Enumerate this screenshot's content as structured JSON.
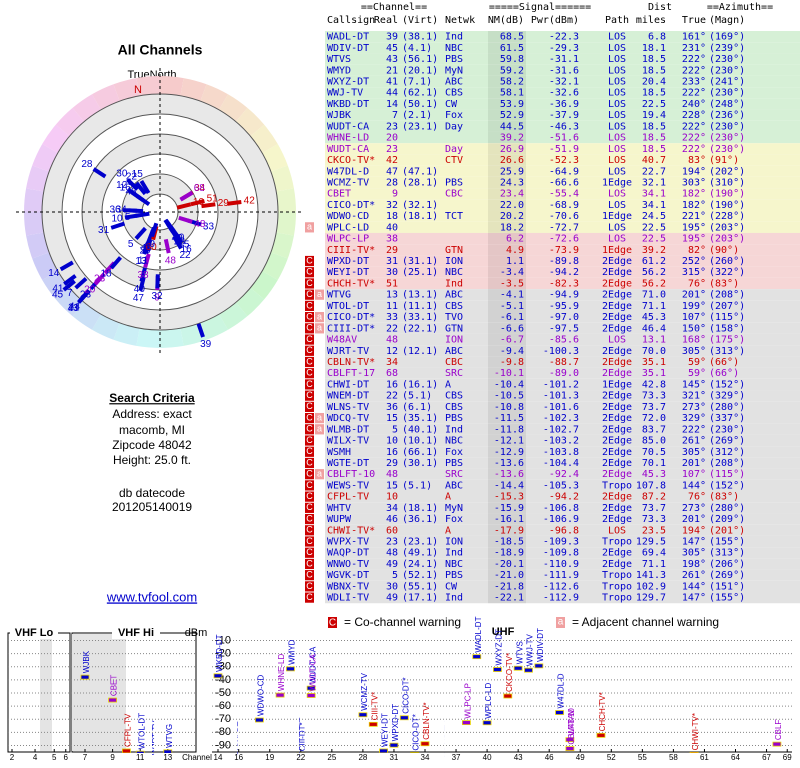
{
  "header": {
    "title": "All Channels",
    "true_north": "TrueNorth",
    "north": "N"
  },
  "criteria": {
    "title": "Search Criteria",
    "lines": [
      "Address: exact",
      "macomb, MI",
      "Zipcode 48042",
      "Height: 25.0 ft."
    ],
    "db_title": "db datecode",
    "db": "201205140019",
    "link": "www.tvfool.com"
  },
  "table": {
    "group_headers": [
      "==Channel==",
      "=====Signal======",
      "Dist",
      "==Azimuth=="
    ],
    "columns": [
      "Callsign",
      "Real",
      "(Virt)",
      "Netwk",
      "NM(dB)",
      "Pwr(dBm)",
      "Path",
      "miles",
      "True",
      "(Magn)"
    ],
    "rows": [
      {
        "cells": [
          "WADL-DT",
          "39",
          "(38.1)",
          "Ind",
          "68.5",
          "-22.3",
          "LOS",
          "6.8",
          "161°",
          "(169°)"
        ],
        "color": "#0000cc",
        "bg": "#d6f0d6"
      },
      {
        "cells": [
          "WDIV-DT",
          "45",
          "(4.1)",
          "NBC",
          "61.5",
          "-29.3",
          "LOS",
          "18.1",
          "231°",
          "(239°)"
        ],
        "color": "#0000cc",
        "bg": "#d6f0d6"
      },
      {
        "cells": [
          "WTVS",
          "43",
          "(56.1)",
          "PBS",
          "59.8",
          "-31.1",
          "LOS",
          "18.5",
          "222°",
          "(230°)"
        ],
        "color": "#0000cc",
        "bg": "#d6f0d6"
      },
      {
        "cells": [
          "WMYD",
          "21",
          "(20.1)",
          "MyN",
          "59.2",
          "-31.6",
          "LOS",
          "18.5",
          "222°",
          "(230°)"
        ],
        "color": "#0000cc",
        "bg": "#d6f0d6"
      },
      {
        "cells": [
          "WXYZ-DT",
          "41",
          "(7.1)",
          "ABC",
          "58.2",
          "-32.1",
          "LOS",
          "20.4",
          "233°",
          "(241°)"
        ],
        "color": "#0000cc",
        "bg": "#d6f0d6"
      },
      {
        "cells": [
          "WWJ-TV",
          "44",
          "(62.1)",
          "CBS",
          "58.1",
          "-32.6",
          "LOS",
          "18.5",
          "222°",
          "(230°)"
        ],
        "color": "#0000cc",
        "bg": "#d6f0d6"
      },
      {
        "cells": [
          "WKBD-DT",
          "14",
          "(50.1)",
          "CW",
          "53.9",
          "-36.9",
          "LOS",
          "22.5",
          "240°",
          "(248°)"
        ],
        "color": "#0000cc",
        "bg": "#d6f0d6"
      },
      {
        "cells": [
          "WJBK",
          "7",
          "(2.1)",
          "Fox",
          "52.9",
          "-37.9",
          "LOS",
          "19.4",
          "228°",
          "(236°)"
        ],
        "color": "#0000cc",
        "bg": "#d6f0d6"
      },
      {
        "cells": [
          "WUDT-CA",
          "23",
          "(23.1)",
          "Day",
          "44.5",
          "-46.3",
          "LOS",
          "18.5",
          "222°",
          "(230°)"
        ],
        "color": "#0000cc",
        "bg": "#d6f0d6"
      },
      {
        "cells": [
          "WHNE-LD",
          "20",
          null,
          null,
          "39.2",
          "-51.6",
          "LOS",
          "18.5",
          "222°",
          "(230°)"
        ],
        "color": "#9900cc",
        "bg": "#d6f0d6"
      },
      {
        "cells": [
          "WUDT-CA",
          "23",
          null,
          "Day",
          "26.9",
          "-51.9",
          "LOS",
          "18.5",
          "222°",
          "(230°)"
        ],
        "color": "#9900cc",
        "bg": "#f6f6cc"
      },
      {
        "cells": [
          "CKCO-TV*",
          "42",
          null,
          "CTV",
          "26.6",
          "-52.3",
          "LOS",
          "40.7",
          "83°",
          "(91°)"
        ],
        "color": "#cc0000",
        "bg": "#f6f6cc"
      },
      {
        "cells": [
          "W47DL-D",
          "47",
          "(47.1)",
          null,
          "25.9",
          "-64.9",
          "LOS",
          "22.7",
          "194°",
          "(202°)"
        ],
        "color": "#0000cc",
        "bg": "#f6f6cc"
      },
      {
        "cells": [
          "WCMZ-TV",
          "28",
          "(28.1)",
          "PBS",
          "24.3",
          "-66.6",
          "1Edge",
          "32.1",
          "303°",
          "(310°)"
        ],
        "color": "#0000cc",
        "bg": "#f6f6cc"
      },
      {
        "cells": [
          "CBET",
          "9",
          null,
          "CBC",
          "23.4",
          "-55.4",
          "LOS",
          "34.1",
          "182°",
          "(190°)"
        ],
        "color": "#9900cc",
        "bg": "#f6f6cc"
      },
      {
        "cells": [
          "CICO-DT*",
          "32",
          "(32.1)",
          null,
          "22.0",
          "-68.9",
          "LOS",
          "34.1",
          "182°",
          "(190°)"
        ],
        "color": "#0000cc",
        "bg": "#f6f6cc"
      },
      {
        "cells": [
          "WDWO-CD",
          "18",
          "(18.1)",
          "TCT",
          "20.2",
          "-70.6",
          "1Edge",
          "24.5",
          "221°",
          "(228°)"
        ],
        "color": "#0000cc",
        "bg": "#f6f6cc"
      },
      {
        "cells": [
          "WPLC-LD",
          "40",
          null,
          null,
          "18.2",
          "-72.7",
          "LOS",
          "22.5",
          "195°",
          "(203°)"
        ],
        "color": "#0000cc",
        "bg": "#f6f6cc",
        "warnings": [
          "a"
        ]
      },
      {
        "cells": [
          "WLPC-LP",
          "38",
          null,
          null,
          "6.2",
          "-72.6",
          "LOS",
          "22.5",
          "195°",
          "(203°)"
        ],
        "color": "#9900cc",
        "bg": "#f6d6d6"
      },
      {
        "cells": [
          "CIII-TV*",
          "29",
          null,
          "GTN",
          "4.9",
          "-73.9",
          "1Edge",
          "39.2",
          "82°",
          "(90°)"
        ],
        "color": "#cc0000",
        "bg": "#f6d6d6"
      },
      {
        "cells": [
          "WPXD-DT",
          "31",
          "(31.1)",
          "ION",
          "1.1",
          "-89.8",
          "2Edge",
          "61.2",
          "252°",
          "(260°)"
        ],
        "color": "#0000cc",
        "bg": "#f6d6d6",
        "warnings": [
          "C"
        ]
      },
      {
        "cells": [
          "WEYI-DT",
          "30",
          "(25.1)",
          "NBC",
          "-3.4",
          "-94.2",
          "2Edge",
          "56.2",
          "315°",
          "(322°)"
        ],
        "color": "#0000cc",
        "bg": "#f6d6d6",
        "warnings": [
          "C"
        ]
      },
      {
        "cells": [
          "CHCH-TV*",
          "51",
          null,
          "Ind",
          "-3.5",
          "-82.3",
          "2Edge",
          "56.2",
          "76°",
          "(83°)"
        ],
        "color": "#cc0000",
        "bg": "#f6d6d6",
        "warnings": [
          "C"
        ]
      },
      {
        "cells": [
          "WTVG",
          "13",
          "(13.1)",
          "ABC",
          "-4.1",
          "-94.9",
          "2Edge",
          "71.0",
          "201°",
          "(208°)"
        ],
        "color": "#0000cc",
        "bg": "#e2e2e2",
        "warnings": [
          "C",
          "a"
        ]
      },
      {
        "cells": [
          "WTOL-DT",
          "11",
          "(11.1)",
          "CBS",
          "-5.1",
          "-95.9",
          "2Edge",
          "71.1",
          "199°",
          "(207°)"
        ],
        "color": "#0000cc",
        "bg": "#e2e2e2",
        "warnings": [
          "C"
        ]
      },
      {
        "cells": [
          "CICO-DT*",
          "33",
          "(33.1)",
          "TVO",
          "-6.1",
          "-97.0",
          "2Edge",
          "45.3",
          "107°",
          "(115°)"
        ],
        "color": "#0000cc",
        "bg": "#e2e2e2",
        "warnings": [
          "C",
          "a"
        ]
      },
      {
        "cells": [
          "CIII-DT*",
          "22",
          "(22.1)",
          "GTN",
          "-6.6",
          "-97.5",
          "2Edge",
          "46.4",
          "150°",
          "(158°)"
        ],
        "color": "#0000cc",
        "bg": "#e2e2e2",
        "warnings": [
          "C",
          "a"
        ]
      },
      {
        "cells": [
          "W48AV",
          "48",
          null,
          "ION",
          "-6.7",
          "-85.6",
          "LOS",
          "13.1",
          "168°",
          "(175°)"
        ],
        "color": "#9900cc",
        "bg": "#e2e2e2",
        "warnings": [
          "C"
        ]
      },
      {
        "cells": [
          "WJRT-TV",
          "12",
          "(12.1)",
          "ABC",
          "-9.4",
          "-100.3",
          "2Edge",
          "70.0",
          "305°",
          "(313°)"
        ],
        "color": "#0000cc",
        "bg": "#e2e2e2",
        "warnings": [
          "C"
        ]
      },
      {
        "cells": [
          "CBLN-TV*",
          "34",
          null,
          "CBC",
          "-9.8",
          "-88.7",
          "2Edge",
          "35.1",
          "59°",
          "(66°)"
        ],
        "color": "#cc0000",
        "bg": "#e2e2e2",
        "warnings": [
          "C"
        ]
      },
      {
        "cells": [
          "CBLFT-17",
          "68",
          null,
          "SRC",
          "-10.1",
          "-89.0",
          "2Edge",
          "35.1",
          "59°",
          "(66°)"
        ],
        "color": "#9900cc",
        "bg": "#e2e2e2",
        "warnings": [
          "C"
        ]
      },
      {
        "cells": [
          "CHWI-DT",
          "16",
          "(16.1)",
          "A",
          "-10.4",
          "-101.2",
          "1Edge",
          "42.8",
          "145°",
          "(152°)"
        ],
        "color": "#0000cc",
        "bg": "#e2e2e2",
        "warnings": [
          "C"
        ]
      },
      {
        "cells": [
          "WNEM-DT",
          "22",
          "(5.1)",
          "CBS",
          "-10.5",
          "-101.3",
          "2Edge",
          "73.3",
          "321°",
          "(329°)"
        ],
        "color": "#0000cc",
        "bg": "#e2e2e2",
        "warnings": [
          "C"
        ]
      },
      {
        "cells": [
          "WLNS-TV",
          "36",
          "(6.1)",
          "CBS",
          "-10.8",
          "-101.6",
          "2Edge",
          "73.7",
          "273°",
          "(280°)"
        ],
        "color": "#0000cc",
        "bg": "#e2e2e2",
        "warnings": [
          "C"
        ]
      },
      {
        "cells": [
          "WDCQ-TV",
          "15",
          "(35.1)",
          "PBS",
          "-11.5",
          "-102.3",
          "2Edge",
          "72.0",
          "329°",
          "(337°)"
        ],
        "color": "#0000cc",
        "bg": "#e2e2e2",
        "warnings": [
          "C",
          "a"
        ]
      },
      {
        "cells": [
          "WLMB-DT",
          "5",
          "(40.1)",
          "Ind",
          "-11.8",
          "-102.7",
          "2Edge",
          "83.7",
          "222°",
          "(230°)"
        ],
        "color": "#0000cc",
        "bg": "#e2e2e2",
        "warnings": [
          "C",
          "a"
        ]
      },
      {
        "cells": [
          "WILX-TV",
          "10",
          "(10.1)",
          "NBC",
          "-12.1",
          "-103.2",
          "2Edge",
          "85.0",
          "261°",
          "(269°)"
        ],
        "color": "#0000cc",
        "bg": "#e2e2e2",
        "warnings": [
          "C"
        ]
      },
      {
        "cells": [
          "WSMH",
          "16",
          "(66.1)",
          "Fox",
          "-12.9",
          "-103.8",
          "2Edge",
          "70.5",
          "305°",
          "(312°)"
        ],
        "color": "#0000cc",
        "bg": "#e2e2e2",
        "warnings": [
          "C"
        ]
      },
      {
        "cells": [
          "WGTE-DT",
          "29",
          "(30.1)",
          "PBS",
          "-13.6",
          "-104.4",
          "2Edge",
          "70.1",
          "201°",
          "(208°)"
        ],
        "color": "#0000cc",
        "bg": "#e2e2e2",
        "warnings": [
          "C"
        ]
      },
      {
        "cells": [
          "CBLFT-10",
          "48",
          null,
          "SRC",
          "-13.6",
          "-92.4",
          "2Edge",
          "45.3",
          "107°",
          "(115°)"
        ],
        "color": "#9900cc",
        "bg": "#e2e2e2",
        "warnings": [
          "C",
          "a"
        ]
      },
      {
        "cells": [
          "WEWS-TV",
          "15",
          "(5.1)",
          "ABC",
          "-14.4",
          "-105.3",
          "Tropo",
          "107.8",
          "144°",
          "(152°)"
        ],
        "color": "#0000cc",
        "bg": "#e2e2e2",
        "warnings": [
          "C"
        ]
      },
      {
        "cells": [
          "CFPL-TV",
          "10",
          null,
          "A",
          "-15.3",
          "-94.2",
          "2Edge",
          "87.2",
          "76°",
          "(83°)"
        ],
        "color": "#cc0000",
        "bg": "#e2e2e2",
        "warnings": [
          "C"
        ]
      },
      {
        "cells": [
          "WHTV",
          "34",
          "(18.1)",
          "MyN",
          "-15.9",
          "-106.8",
          "2Edge",
          "73.7",
          "273°",
          "(280°)"
        ],
        "color": "#0000cc",
        "bg": "#e2e2e2",
        "warnings": [
          "C"
        ]
      },
      {
        "cells": [
          "WUPW",
          "46",
          "(36.1)",
          "Fox",
          "-16.1",
          "-106.9",
          "2Edge",
          "73.3",
          "201°",
          "(209°)"
        ],
        "color": "#0000cc",
        "bg": "#e2e2e2",
        "warnings": [
          "C"
        ]
      },
      {
        "cells": [
          "CHWI-TV*",
          "60",
          null,
          "A",
          "-17.9",
          "-96.8",
          "LOS",
          "23.5",
          "194°",
          "(201°)"
        ],
        "color": "#cc0000",
        "bg": "#e2e2e2",
        "warnings": [
          "C"
        ]
      },
      {
        "cells": [
          "WVPX-TV",
          "23",
          "(23.1)",
          "ION",
          "-18.5",
          "-109.3",
          "Tropo",
          "129.5",
          "147°",
          "(155°)"
        ],
        "color": "#0000cc",
        "bg": "#e2e2e2",
        "warnings": [
          "C"
        ]
      },
      {
        "cells": [
          "WAQP-DT",
          "48",
          "(49.1)",
          "Ind",
          "-18.9",
          "-109.8",
          "2Edge",
          "69.4",
          "305°",
          "(313°)"
        ],
        "color": "#0000cc",
        "bg": "#e2e2e2",
        "warnings": [
          "C"
        ]
      },
      {
        "cells": [
          "WNWO-TV",
          "49",
          "(24.1)",
          "NBC",
          "-20.1",
          "-110.9",
          "2Edge",
          "71.1",
          "198°",
          "(206°)"
        ],
        "color": "#0000cc",
        "bg": "#e2e2e2",
        "warnings": [
          "C"
        ]
      },
      {
        "cells": [
          "WGVK-DT",
          "5",
          "(52.1)",
          "PBS",
          "-21.0",
          "-111.9",
          "Tropo",
          "141.3",
          "261°",
          "(269°)"
        ],
        "color": "#0000cc",
        "bg": "#e2e2e2",
        "warnings": [
          "C"
        ]
      },
      {
        "cells": [
          "WBNX-TV",
          "30",
          "(55.1)",
          "CW",
          "-21.8",
          "-112.6",
          "Tropo",
          "102.9",
          "144°",
          "(151°)"
        ],
        "color": "#0000cc",
        "bg": "#e2e2e2",
        "warnings": [
          "C"
        ]
      },
      {
        "cells": [
          "WDLI-TV",
          "49",
          "(17.1)",
          "Ind",
          "-22.1",
          "-112.9",
          "Tropo",
          "129.7",
          "147°",
          "(155°)"
        ],
        "color": "#0000cc",
        "bg": "#e2e2e2",
        "warnings": [
          "C"
        ]
      }
    ]
  },
  "legend": {
    "co_mark": "C",
    "co_text": "= Co-channel warning",
    "adj_mark": "a",
    "adj_text": "= Adjacent channel warning"
  },
  "spectrum": {
    "bands": [
      "VHF Lo",
      "VHF Hi",
      "UHF"
    ],
    "y_label": "dBm",
    "x_label": "Channel",
    "ylim": [
      -95,
      -5
    ],
    "yticks": [
      -10,
      -20,
      -30,
      -40,
      -50,
      -60,
      -70,
      -80,
      -90
    ],
    "vhf_lo_ticks": [
      2,
      4,
      5,
      6
    ],
    "vhf_hi_ticks": [
      7,
      9,
      11,
      13
    ],
    "uhf_ticks": [
      14,
      16,
      19,
      22,
      25,
      28,
      31,
      34,
      37,
      40,
      43,
      46,
      49,
      52,
      55,
      58,
      61,
      64,
      67,
      69
    ]
  }
}
